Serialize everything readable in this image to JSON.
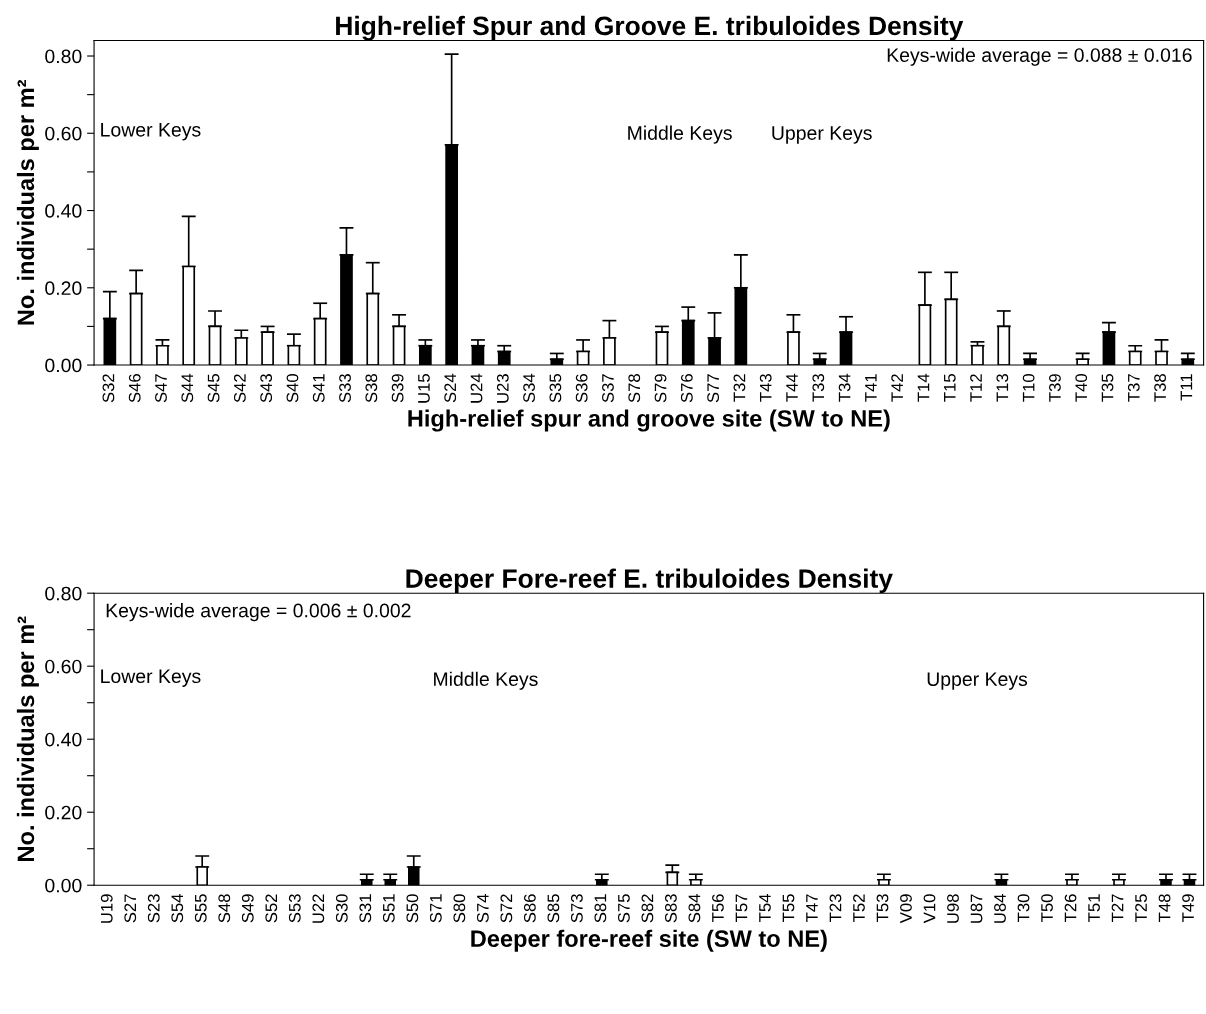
{
  "chart_data": [
    {
      "type": "bar",
      "title": "High-relief Spur and Groove E. tribuloides Density",
      "xlabel": "High-relief spur and groove site (SW to NE)",
      "ylabel": "No. individuals per m²",
      "categories": [
        "S32",
        "S46",
        "S47",
        "S44",
        "S45",
        "S42",
        "S43",
        "S40",
        "S41",
        "S33",
        "S38",
        "S39",
        "U15",
        "S24",
        "U24",
        "U23",
        "S34",
        "S35",
        "S36",
        "S37",
        "S78",
        "S79",
        "S76",
        "S77",
        "T32",
        "T43",
        "T44",
        "T33",
        "T34",
        "T41",
        "T42",
        "T14",
        "T15",
        "T12",
        "T13",
        "T10",
        "T39",
        "T40",
        "T35",
        "T37",
        "T38",
        "T11"
      ],
      "values": [
        0.12,
        0.185,
        0.05,
        0.255,
        0.1,
        0.07,
        0.085,
        0.05,
        0.12,
        0.285,
        0.185,
        0.1,
        0.05,
        0.57,
        0.05,
        0.035,
        0,
        0.015,
        0.035,
        0.07,
        0,
        0.085,
        0.115,
        0.07,
        0.2,
        0,
        0.085,
        0.015,
        0.085,
        0,
        0,
        0.155,
        0.17,
        0.05,
        0.1,
        0.015,
        0,
        0.015,
        0.085,
        0.035,
        0.035,
        0.015
      ],
      "errors": [
        [
          0.12,
          0.19
        ],
        [
          0.185,
          0.245
        ],
        [
          0.05,
          0.065
        ],
        [
          0.255,
          0.385
        ],
        [
          0.1,
          0.14
        ],
        [
          0.07,
          0.09
        ],
        [
          0.085,
          0.1
        ],
        [
          0.05,
          0.08
        ],
        [
          0.12,
          0.16
        ],
        [
          0.285,
          0.355
        ],
        [
          0.185,
          0.265
        ],
        [
          0.1,
          0.13
        ],
        [
          0.05,
          0.065
        ],
        [
          0.57,
          0.805
        ],
        [
          0.05,
          0.065
        ],
        [
          0.035,
          0.05
        ],
        null,
        [
          0.015,
          0.03
        ],
        [
          0.035,
          0.065
        ],
        [
          0.07,
          0.115
        ],
        null,
        [
          0.085,
          0.1
        ],
        [
          0.115,
          0.15
        ],
        [
          0.07,
          0.135
        ],
        [
          0.2,
          0.285
        ],
        null,
        [
          0.085,
          0.13
        ],
        [
          0.015,
          0.03
        ],
        [
          0.085,
          0.125
        ],
        null,
        null,
        [
          0.155,
          0.24
        ],
        [
          0.17,
          0.24
        ],
        [
          0.05,
          0.06
        ],
        [
          0.1,
          0.14
        ],
        [
          0.015,
          0.03
        ],
        null,
        [
          0.015,
          0.03
        ],
        [
          0.085,
          0.11
        ],
        [
          0.035,
          0.05
        ],
        [
          0.035,
          0.065
        ],
        [
          0.015,
          0.03
        ]
      ],
      "colors": [
        "#000000",
        "#ffffff",
        "#ffffff",
        "#ffffff",
        "#ffffff",
        "#ffffff",
        "#ffffff",
        "#ffffff",
        "#ffffff",
        "#000000",
        "#ffffff",
        "#ffffff",
        "#000000",
        "#000000",
        "#000000",
        "#000000",
        "#ffffff",
        "#000000",
        "#ffffff",
        "#ffffff",
        "#ffffff",
        "#ffffff",
        "#000000",
        "#000000",
        "#000000",
        "#ffffff",
        "#ffffff",
        "#000000",
        "#000000",
        "#ffffff",
        "#ffffff",
        "#ffffff",
        "#ffffff",
        "#ffffff",
        "#ffffff",
        "#000000",
        "#ffffff",
        "#ffffff",
        "#000000",
        "#ffffff",
        "#ffffff",
        "#000000"
      ],
      "ylim": [
        0,
        0.84
      ],
      "yticks": [
        {
          "value": 0,
          "label": "0.00"
        },
        {
          "value": 0.1,
          "label": null
        },
        {
          "value": 0.2,
          "label": "0.20"
        },
        {
          "value": 0.3,
          "label": null
        },
        {
          "value": 0.4,
          "label": "0.40"
        },
        {
          "value": 0.5,
          "label": null
        },
        {
          "value": 0.6,
          "label": "0.60"
        },
        {
          "value": 0.7,
          "label": null
        },
        {
          "value": 0.8,
          "label": "0.80"
        }
      ],
      "annotations": [
        "Keys-wide average = 0.088 ± 0.016",
        "Lower Keys",
        "Middle Keys",
        "Upper Keys"
      ],
      "grid": false,
      "legend": false
    },
    {
      "type": "bar",
      "title": "Deeper Fore-reef E. tribuloides Density",
      "xlabel": "Deeper fore-reef site (SW to NE)",
      "ylabel": "No. individuals per m²",
      "categories": [
        "U19",
        "S27",
        "S23",
        "S54",
        "S55",
        "S48",
        "S49",
        "S52",
        "S53",
        "U22",
        "S30",
        "S31",
        "S51",
        "S50",
        "S71",
        "S80",
        "S74",
        "S72",
        "S86",
        "S85",
        "S73",
        "S81",
        "S75",
        "S82",
        "S83",
        "S84",
        "T56",
        "T57",
        "T54",
        "T55",
        "T47",
        "T23",
        "T52",
        "T53",
        "V09",
        "V10",
        "U98",
        "U87",
        "U84",
        "T30",
        "T50",
        "T26",
        "T51",
        "T27",
        "T25",
        "T48",
        "T49"
      ],
      "values": [
        0,
        0,
        0,
        0,
        0.05,
        0,
        0,
        0,
        0,
        0,
        0,
        0.015,
        0.015,
        0.05,
        0,
        0,
        0,
        0,
        0,
        0,
        0,
        0.015,
        0,
        0,
        0.035,
        0.015,
        0,
        0,
        0,
        0,
        0,
        0,
        0,
        0.015,
        0,
        0,
        0,
        0,
        0.015,
        0,
        0,
        0.015,
        0,
        0.015,
        0,
        0.015,
        0.015
      ],
      "errors": [
        null,
        null,
        null,
        null,
        [
          0.05,
          0.08
        ],
        null,
        null,
        null,
        null,
        null,
        null,
        [
          0.015,
          0.03
        ],
        [
          0.015,
          0.03
        ],
        [
          0.05,
          0.08
        ],
        null,
        null,
        null,
        null,
        null,
        null,
        null,
        [
          0.015,
          0.03
        ],
        null,
        null,
        [
          0.035,
          0.055
        ],
        [
          0.015,
          0.03
        ],
        null,
        null,
        null,
        null,
        null,
        null,
        null,
        [
          0.015,
          0.03
        ],
        null,
        null,
        null,
        null,
        [
          0.015,
          0.03
        ],
        null,
        null,
        [
          0.015,
          0.03
        ],
        null,
        [
          0.015,
          0.03
        ],
        null,
        [
          0.015,
          0.03
        ],
        [
          0.015,
          0.03
        ]
      ],
      "colors": [
        "#ffffff",
        "#ffffff",
        "#ffffff",
        "#ffffff",
        "#ffffff",
        "#ffffff",
        "#ffffff",
        "#ffffff",
        "#ffffff",
        "#ffffff",
        "#ffffff",
        "#000000",
        "#000000",
        "#000000",
        "#ffffff",
        "#ffffff",
        "#ffffff",
        "#ffffff",
        "#ffffff",
        "#ffffff",
        "#ffffff",
        "#000000",
        "#ffffff",
        "#ffffff",
        "#ffffff",
        "#ffffff",
        "#ffffff",
        "#ffffff",
        "#ffffff",
        "#ffffff",
        "#ffffff",
        "#ffffff",
        "#ffffff",
        "#ffffff",
        "#ffffff",
        "#ffffff",
        "#ffffff",
        "#ffffff",
        "#000000",
        "#ffffff",
        "#ffffff",
        "#ffffff",
        "#ffffff",
        "#ffffff",
        "#ffffff",
        "#000000",
        "#000000"
      ],
      "ylim": [
        0,
        0.8
      ],
      "yticks": [
        {
          "value": 0,
          "label": "0.00"
        },
        {
          "value": 0.1,
          "label": null
        },
        {
          "value": 0.2,
          "label": "0.20"
        },
        {
          "value": 0.3,
          "label": null
        },
        {
          "value": 0.4,
          "label": "0.40"
        },
        {
          "value": 0.5,
          "label": null
        },
        {
          "value": 0.6,
          "label": "0.60"
        },
        {
          "value": 0.7,
          "label": null
        },
        {
          "value": 0.8,
          "label": "0.80"
        }
      ],
      "annotations": [
        "Keys-wide average = 0.006 ± 0.002",
        "Lower Keys",
        "Middle Keys",
        "Upper Keys"
      ],
      "grid": false,
      "legend": false
    }
  ]
}
